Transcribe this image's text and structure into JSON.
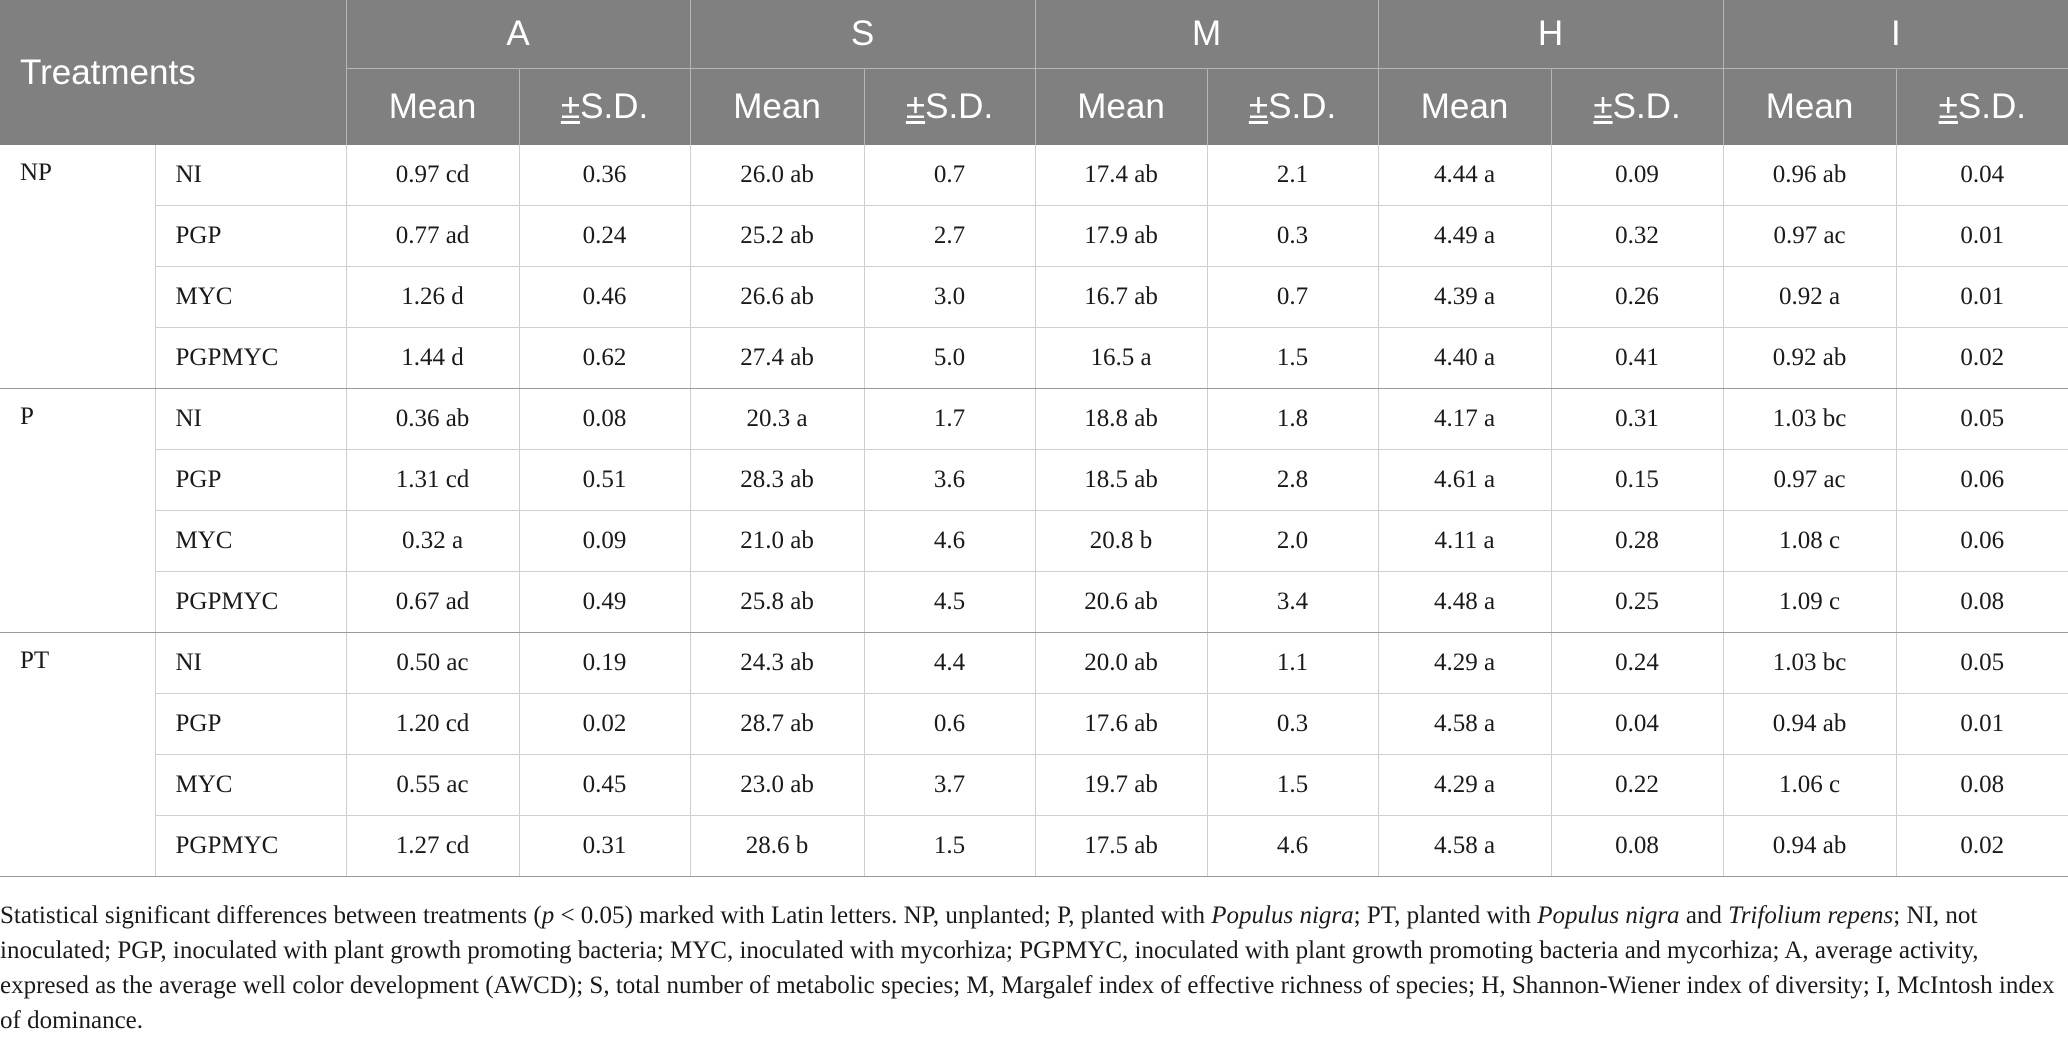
{
  "table": {
    "corner_label": "Treatments",
    "indices": [
      "A",
      "S",
      "M",
      "H",
      "I"
    ],
    "sub_mean": "Mean",
    "sub_sd_sign": "±",
    "sub_sd_label": "S.D.",
    "groups": [
      {
        "name": "NP",
        "rows": [
          {
            "treatment": "NI",
            "values": [
              "0.97 cd",
              "0.36",
              "26.0 ab",
              "0.7",
              "17.4 ab",
              "2.1",
              "4.44 a",
              "0.09",
              "0.96 ab",
              "0.04"
            ]
          },
          {
            "treatment": "PGP",
            "values": [
              "0.77 ad",
              "0.24",
              "25.2 ab",
              "2.7",
              "17.9 ab",
              "0.3",
              "4.49 a",
              "0.32",
              "0.97 ac",
              "0.01"
            ]
          },
          {
            "treatment": "MYC",
            "values": [
              "1.26 d",
              "0.46",
              "26.6 ab",
              "3.0",
              "16.7 ab",
              "0.7",
              "4.39 a",
              "0.26",
              "0.92 a",
              "0.01"
            ]
          },
          {
            "treatment": "PGPMYC",
            "values": [
              "1.44 d",
              "0.62",
              "27.4 ab",
              "5.0",
              "16.5 a",
              "1.5",
              "4.40 a",
              "0.41",
              "0.92 ab",
              "0.02"
            ]
          }
        ]
      },
      {
        "name": "P",
        "rows": [
          {
            "treatment": "NI",
            "values": [
              "0.36 ab",
              "0.08",
              "20.3 a",
              "1.7",
              "18.8 ab",
              "1.8",
              "4.17 a",
              "0.31",
              "1.03 bc",
              "0.05"
            ]
          },
          {
            "treatment": "PGP",
            "values": [
              "1.31 cd",
              "0.51",
              "28.3 ab",
              "3.6",
              "18.5 ab",
              "2.8",
              "4.61 a",
              "0.15",
              "0.97 ac",
              "0.06"
            ]
          },
          {
            "treatment": "MYC",
            "values": [
              "0.32 a",
              "0.09",
              "21.0 ab",
              "4.6",
              "20.8 b",
              "2.0",
              "4.11 a",
              "0.28",
              "1.08 c",
              "0.06"
            ]
          },
          {
            "treatment": "PGPMYC",
            "values": [
              "0.67 ad",
              "0.49",
              "25.8 ab",
              "4.5",
              "20.6 ab",
              "3.4",
              "4.48 a",
              "0.25",
              "1.09 c",
              "0.08"
            ]
          }
        ]
      },
      {
        "name": "PT",
        "rows": [
          {
            "treatment": "NI",
            "values": [
              "0.50 ac",
              "0.19",
              "24.3 ab",
              "4.4",
              "20.0 ab",
              "1.1",
              "4.29 a",
              "0.24",
              "1.03 bc",
              "0.05"
            ]
          },
          {
            "treatment": "PGP",
            "values": [
              "1.20 cd",
              "0.02",
              "28.7 ab",
              "0.6",
              "17.6 ab",
              "0.3",
              "4.58 a",
              "0.04",
              "0.94 ab",
              "0.01"
            ]
          },
          {
            "treatment": "MYC",
            "values": [
              "0.55 ac",
              "0.45",
              "23.0 ab",
              "3.7",
              "19.7 ab",
              "1.5",
              "4.29 a",
              "0.22",
              "1.06 c",
              "0.08"
            ]
          },
          {
            "treatment": "PGPMYC",
            "values": [
              "1.27 cd",
              "0.31",
              "28.6 b",
              "1.5",
              "17.5 ab",
              "4.6",
              "4.58 a",
              "0.08",
              "0.94 ab",
              "0.02"
            ]
          }
        ]
      }
    ]
  },
  "footnote": {
    "t1": "Statistical significant differences between treatments (",
    "p": "p",
    "t2": " < 0.05) marked with Latin letters. NP, unplanted; P, planted with ",
    "sp1": "Populus nigra",
    "t3": "; PT, planted with ",
    "sp2": "Populus nigra",
    "t4": " and ",
    "sp3": "Trifolium repens",
    "t5": "; NI, not inoculated; PGP, inoculated with plant growth promoting bacteria; MYC, inoculated with mycorhiza; PGPMYC, inoculated with plant growth promoting bacteria and mycorhiza; A, average activity, expresed as the average well color development (AWCD); S, total number of metabolic species; M, Margalef index of effective richness of species; H, Shannon-Wiener index of diversity; I, McIntosh index of dominance."
  }
}
